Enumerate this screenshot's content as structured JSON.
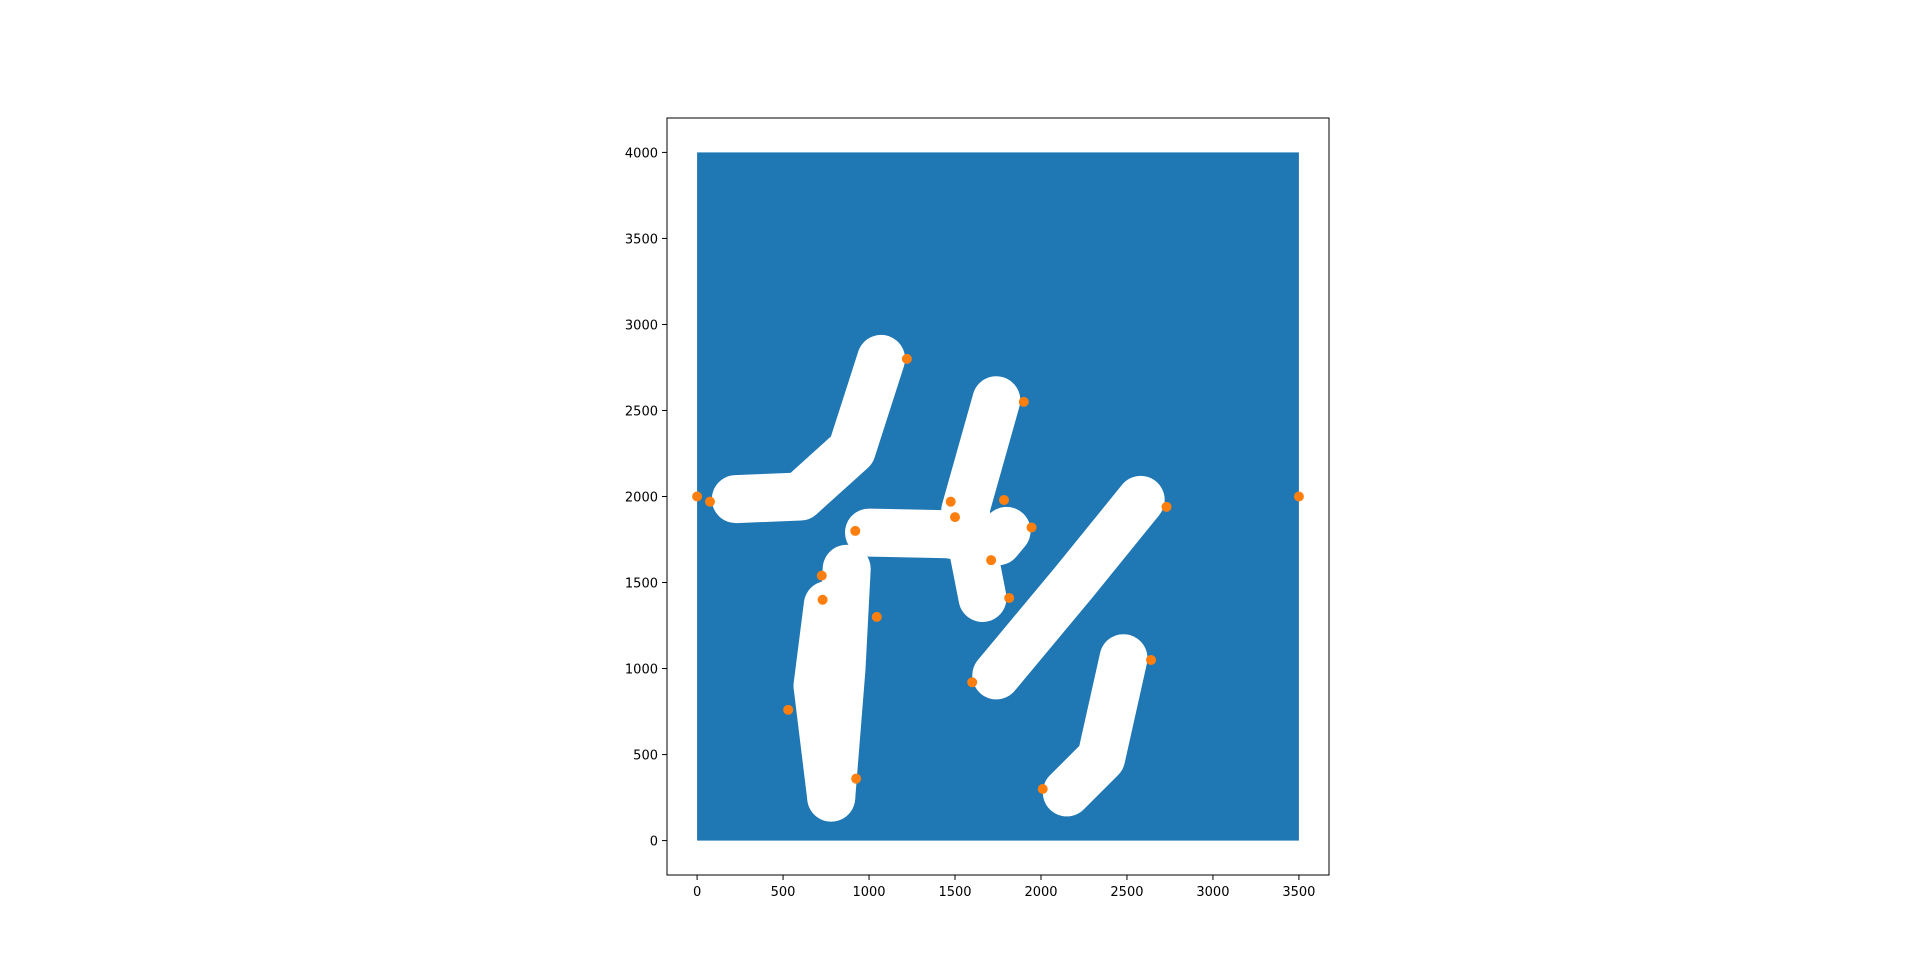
{
  "chart_data": {
    "type": "scatter",
    "title": "",
    "xlabel": "",
    "ylabel": "",
    "xlim": [
      -175,
      3675
    ],
    "ylim": [
      -200,
      4200
    ],
    "x_ticks": [
      0,
      500,
      1000,
      1500,
      2000,
      2500,
      3000,
      3500
    ],
    "y_ticks": [
      0,
      500,
      1000,
      1500,
      2000,
      2500,
      3000,
      3500,
      4000
    ],
    "x_tick_labels": [
      "0",
      "500",
      "1000",
      "1500",
      "2000",
      "2500",
      "3000",
      "3500"
    ],
    "y_tick_labels": [
      "0",
      "500",
      "1000",
      "1500",
      "2000",
      "2500",
      "3000",
      "3500",
      "4000"
    ],
    "grid": false,
    "region": {
      "extent_x": [
        0,
        3500
      ],
      "extent_y": [
        0,
        4000
      ],
      "color": "#1f77b4"
    },
    "holes": [
      {
        "points": [
          [
            225,
            1985
          ],
          [
            600,
            2000
          ],
          [
            900,
            2270
          ],
          [
            1070,
            2800
          ]
        ],
        "color": "#ffffff"
      },
      {
        "points": [
          [
            1740,
            2560
          ],
          [
            1560,
            1920
          ],
          [
            1660,
            1410
          ]
        ],
        "color": "#ffffff"
      },
      {
        "points": [
          [
            1000,
            1790
          ],
          [
            1460,
            1780
          ],
          [
            1750,
            1740
          ],
          [
            1800,
            1800
          ]
        ],
        "color": "#ffffff"
      },
      {
        "points": [
          [
            870,
            1580
          ],
          [
            840,
            1000
          ],
          [
            780,
            250
          ]
        ],
        "color": "#ffffff"
      },
      {
        "points": [
          [
            760,
            1370
          ],
          [
            700,
            900
          ],
          [
            780,
            250
          ]
        ],
        "color": "#ffffff"
      },
      {
        "points": [
          [
            2580,
            1980
          ],
          [
            2190,
            1500
          ],
          [
            1740,
            960
          ]
        ],
        "color": "#ffffff"
      },
      {
        "points": [
          [
            2480,
            1060
          ],
          [
            2350,
            480
          ],
          [
            2150,
            280
          ]
        ],
        "color": "#ffffff"
      }
    ],
    "series": [
      {
        "color": "#ff7f0e",
        "points": [
          [
            0,
            2000
          ],
          [
            75,
            1970
          ],
          [
            1220,
            2800
          ],
          [
            1900,
            2550
          ],
          [
            1475,
            1970
          ],
          [
            1500,
            1880
          ],
          [
            1785,
            1980
          ],
          [
            1945,
            1820
          ],
          [
            920,
            1800
          ],
          [
            1710,
            1630
          ],
          [
            725,
            1540
          ],
          [
            730,
            1400
          ],
          [
            1815,
            1410
          ],
          [
            1045,
            1300
          ],
          [
            2730,
            1940
          ],
          [
            3500,
            2000
          ],
          [
            2640,
            1050
          ],
          [
            1600,
            920
          ],
          [
            530,
            760
          ],
          [
            925,
            360
          ],
          [
            2010,
            300
          ]
        ]
      }
    ]
  }
}
